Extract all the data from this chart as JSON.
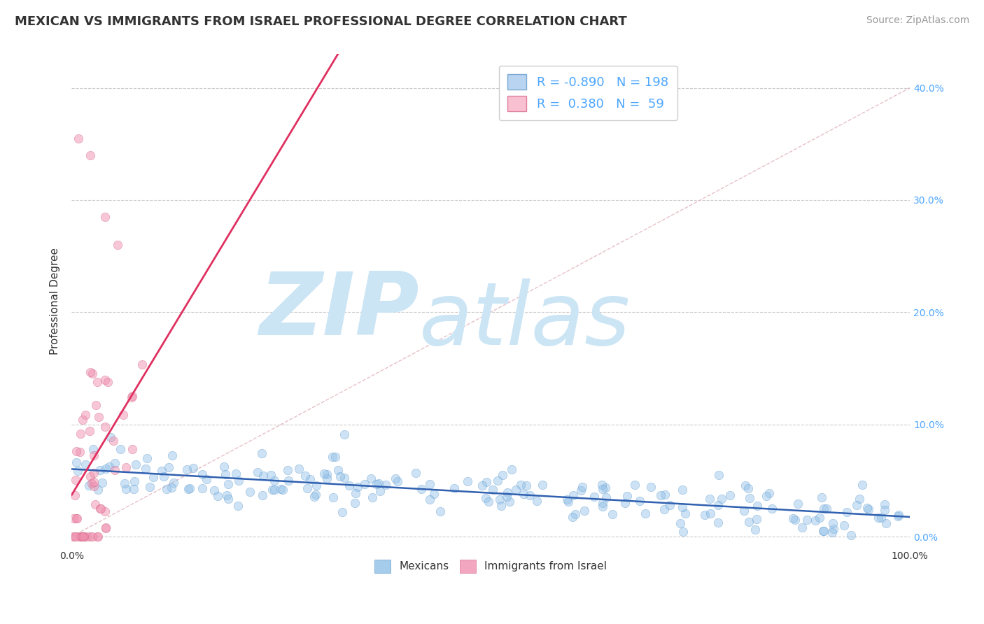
{
  "title": "MEXICAN VS IMMIGRANTS FROM ISRAEL PROFESSIONAL DEGREE CORRELATION CHART",
  "source_text": "Source: ZipAtlas.com",
  "ylabel_label": "Professional Degree",
  "right_ytick_vals": [
    0.0,
    0.1,
    0.2,
    0.3,
    0.4
  ],
  "right_ytick_labels": [
    "0.0%",
    "10.0%",
    "20.0%",
    "30.0%",
    "40.0%"
  ],
  "xlim": [
    0.0,
    1.0
  ],
  "ylim": [
    -0.01,
    0.43
  ],
  "legend_entries": [
    {
      "label_r": "R = -0.890",
      "label_n": "N = 198",
      "facecolor": "#b8d4f0",
      "edgecolor": "#7baad4"
    },
    {
      "label_r": "R =  0.380",
      "label_n": "N =  59",
      "facecolor": "#f8c0d0",
      "edgecolor": "#e080a0"
    }
  ],
  "watermark_zip": "ZIP",
  "watermark_atlas": "atlas",
  "watermark_color": "#cce5f5",
  "blue_scatter_color": "#90c0e8",
  "blue_scatter_edge": "#5090c8",
  "pink_scatter_color": "#f090b0",
  "pink_scatter_edge": "#d06080",
  "blue_line_color": "#3060b0",
  "pink_line_color": "#e03060",
  "dashed_diag_color": "#e0b0b8",
  "blue_R": -0.89,
  "blue_N": 198,
  "pink_R": 0.38,
  "pink_N": 59,
  "title_fontsize": 13,
  "axis_fontsize": 10,
  "legend_fontsize": 13,
  "source_fontsize": 10,
  "bottom_legend_labels": [
    "Mexicans",
    "Immigrants from Israel"
  ]
}
